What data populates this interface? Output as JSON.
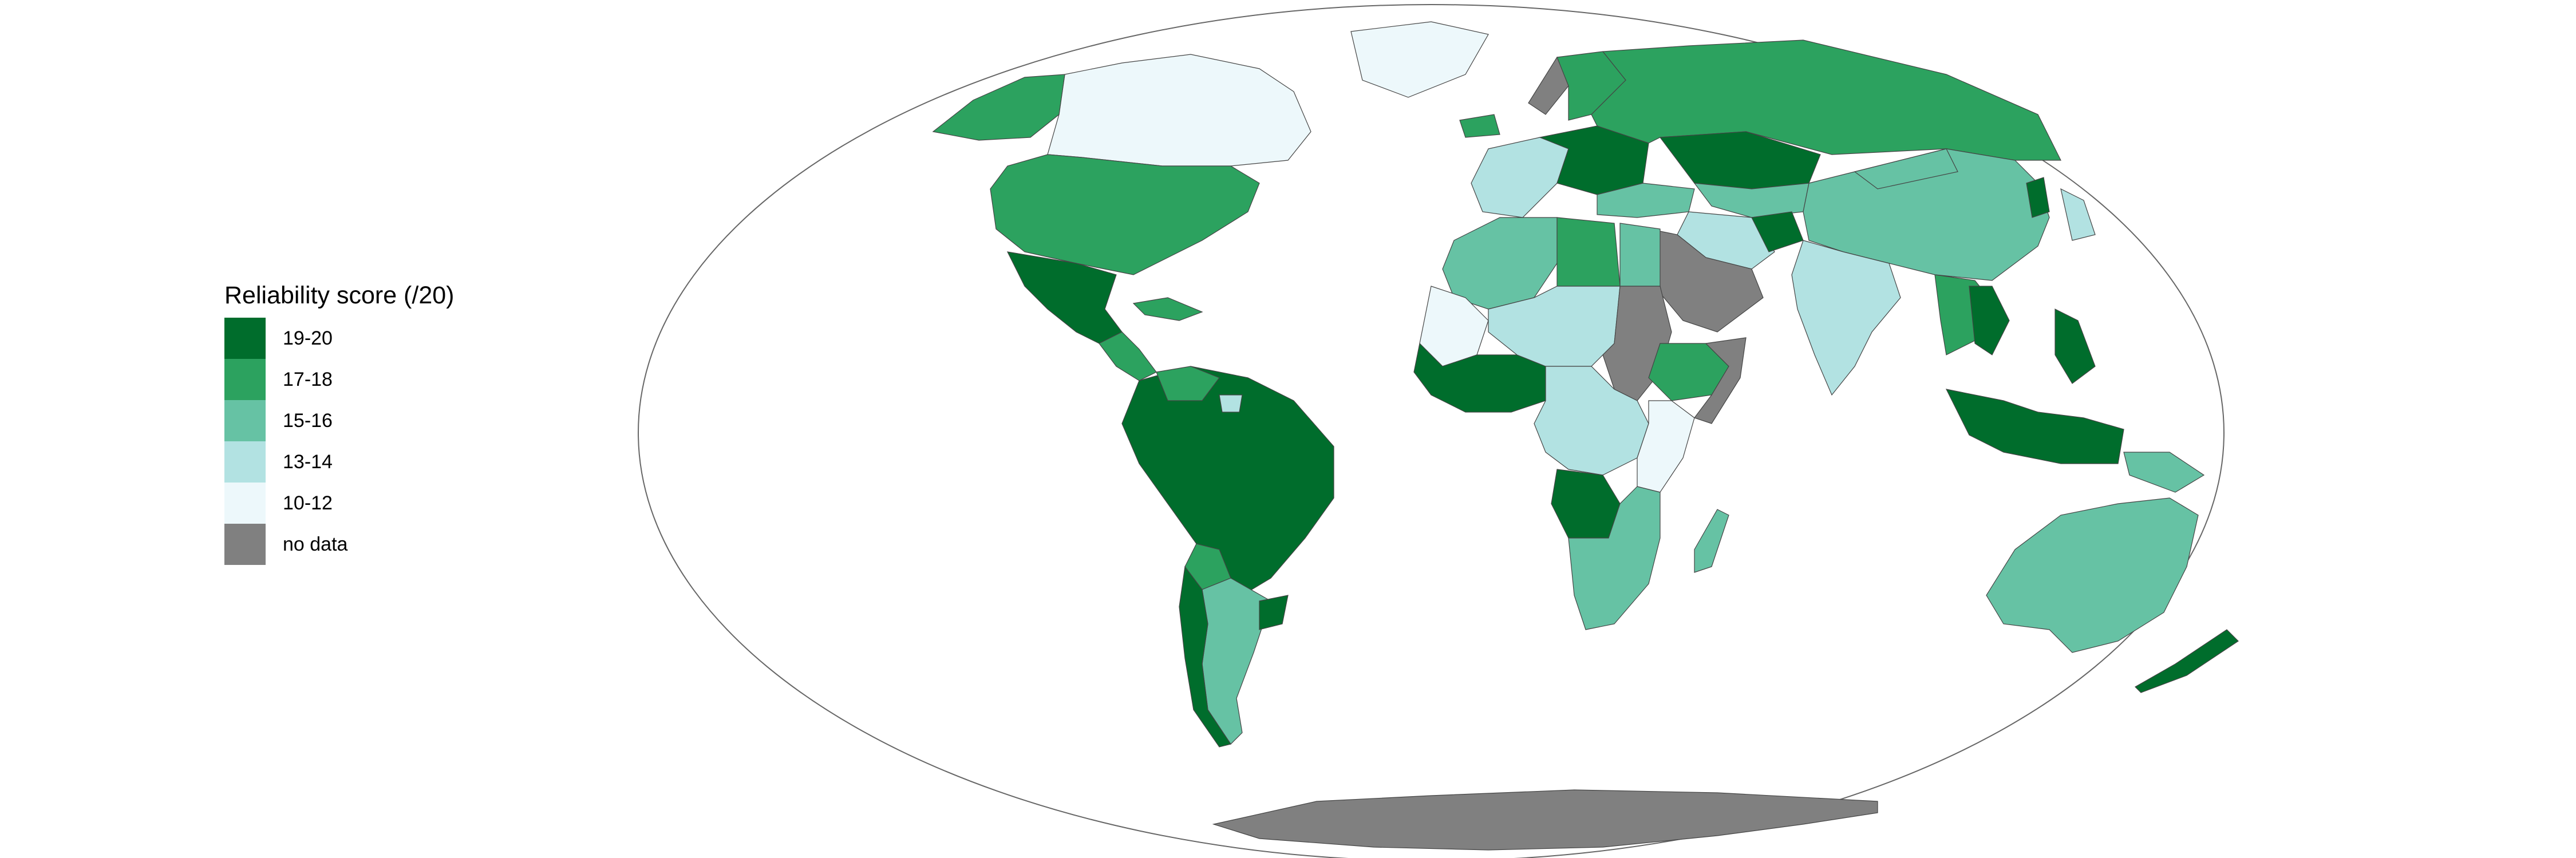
{
  "legend": {
    "title": "Reliability score (/20)",
    "items": [
      {
        "label": "19-20",
        "color": "#006d2c"
      },
      {
        "label": "17-18",
        "color": "#2ca25f"
      },
      {
        "label": "15-16",
        "color": "#66c2a4"
      },
      {
        "label": "13-14",
        "color": "#b2e2e2"
      },
      {
        "label": "10-12",
        "color": "#edf8fb"
      },
      {
        "label": "no data",
        "color": "#808080"
      }
    ]
  },
  "map": {
    "projection": "mollweide",
    "ocean_color": "#ffffff",
    "outline_color": "#666666",
    "region_scores": [
      {
        "region": "Canada",
        "class": "10-12"
      },
      {
        "region": "Greenland",
        "class": "10-12"
      },
      {
        "region": "Alaska",
        "class": "17-18"
      },
      {
        "region": "United States",
        "class": "17-18"
      },
      {
        "region": "Mexico",
        "class": "19-20"
      },
      {
        "region": "Central America",
        "class": "17-18"
      },
      {
        "region": "Caribbean",
        "class": "17-18"
      },
      {
        "region": "South America North",
        "class": "19-20"
      },
      {
        "region": "Venezuela",
        "class": "17-18"
      },
      {
        "region": "Guyana",
        "class": "13-14"
      },
      {
        "region": "Bolivia",
        "class": "17-18"
      },
      {
        "region": "Argentina",
        "class": "15-16"
      },
      {
        "region": "Chile",
        "class": "19-20"
      },
      {
        "region": "Uruguay",
        "class": "19-20"
      },
      {
        "region": "Iceland",
        "class": "17-18"
      },
      {
        "region": "Norway",
        "class": "no data"
      },
      {
        "region": "Northern Europe",
        "class": "17-18"
      },
      {
        "region": "Western Europe",
        "class": "13-14"
      },
      {
        "region": "Central Europe",
        "class": "19-20"
      },
      {
        "region": "Russia",
        "class": "17-18"
      },
      {
        "region": "Kazakhstan",
        "class": "19-20"
      },
      {
        "region": "Central Asia",
        "class": "15-16"
      },
      {
        "region": "China",
        "class": "15-16"
      },
      {
        "region": "Mongolia",
        "class": "15-16"
      },
      {
        "region": "Korea",
        "class": "19-20"
      },
      {
        "region": "Japan",
        "class": "13-14"
      },
      {
        "region": "Turkey",
        "class": "15-16"
      },
      {
        "region": "Middle East",
        "class": "13-14"
      },
      {
        "region": "Arabian Peninsula",
        "class": "no data"
      },
      {
        "region": "Afghanistan",
        "class": "19-20"
      },
      {
        "region": "India",
        "class": "13-14"
      },
      {
        "region": "Southeast Asia",
        "class": "17-18"
      },
      {
        "region": "Vietnam",
        "class": "19-20"
      },
      {
        "region": "Philippines",
        "class": "19-20"
      },
      {
        "region": "Indonesia",
        "class": "19-20"
      },
      {
        "region": "Papua New Guinea",
        "class": "15-16"
      },
      {
        "region": "Australia",
        "class": "15-16"
      },
      {
        "region": "New Zealand",
        "class": "19-20"
      },
      {
        "region": "North Africa",
        "class": "15-16"
      },
      {
        "region": "Libya",
        "class": "17-18"
      },
      {
        "region": "Egypt",
        "class": "15-16"
      },
      {
        "region": "Mauritania",
        "class": "10-12"
      },
      {
        "region": "West Africa",
        "class": "19-20"
      },
      {
        "region": "Sahel",
        "class": "13-14"
      },
      {
        "region": "Sudan",
        "class": "no data"
      },
      {
        "region": "Ethiopia",
        "class": "17-18"
      },
      {
        "region": "Somalia",
        "class": "no data"
      },
      {
        "region": "Central Africa",
        "class": "13-14"
      },
      {
        "region": "East Africa",
        "class": "10-12"
      },
      {
        "region": "Angola",
        "class": "19-20"
      },
      {
        "region": "Southern Africa",
        "class": "15-16"
      },
      {
        "region": "Madagascar",
        "class": "15-16"
      },
      {
        "region": "Antarctica",
        "class": "no data"
      }
    ]
  }
}
